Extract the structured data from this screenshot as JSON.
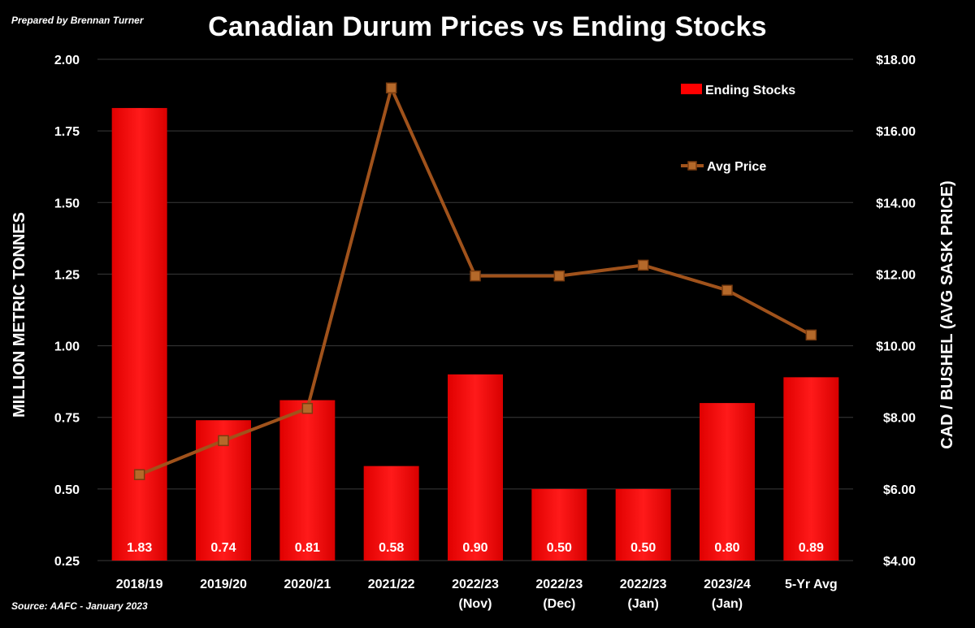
{
  "prepared_by": "Prepared by Brennan Turner",
  "source": "Source: AAFC -  January 2023",
  "chart_data": {
    "type": "bar",
    "title": "Canadian Durum Prices vs Ending Stocks",
    "categories": [
      [
        "2018/19"
      ],
      [
        "2019/20"
      ],
      [
        "2020/21"
      ],
      [
        "2021/22"
      ],
      [
        "2022/23",
        "(Nov)"
      ],
      [
        "2022/23",
        "(Dec)"
      ],
      [
        "2022/23",
        "(Jan)"
      ],
      [
        "2023/24",
        "(Jan)"
      ],
      [
        "5-Yr Avg"
      ]
    ],
    "series": [
      {
        "name": "Ending Stocks",
        "type": "bar",
        "axis": "left",
        "color": "#ff0000",
        "values": [
          1.83,
          0.74,
          0.81,
          0.58,
          0.9,
          0.5,
          0.5,
          0.8,
          0.89
        ],
        "data_labels": [
          "1.83",
          "0.74",
          "0.81",
          "0.58",
          "0.90",
          "0.50",
          "0.50",
          "0.80",
          "0.89"
        ]
      },
      {
        "name": "Avg Price",
        "type": "line",
        "axis": "right",
        "color": "#a0521b",
        "values": [
          6.4,
          7.35,
          8.25,
          17.2,
          11.95,
          11.95,
          12.25,
          11.55,
          10.3
        ]
      }
    ],
    "y_left": {
      "label": "MILLION METRIC TONNES",
      "lim": [
        0.25,
        2.0
      ],
      "ticks": [
        0.25,
        0.5,
        0.75,
        1.0,
        1.25,
        1.5,
        1.75,
        2.0
      ],
      "tick_labels": [
        "0.25",
        "0.50",
        "0.75",
        "1.00",
        "1.25",
        "1.50",
        "1.75",
        "2.00"
      ]
    },
    "y_right": {
      "label": "CAD / BUSHEL (AVG SASK PRICE)",
      "lim": [
        4,
        18
      ],
      "ticks": [
        4,
        6,
        8,
        10,
        12,
        14,
        16,
        18
      ],
      "tick_labels": [
        "$4.00",
        "$6.00",
        "$8.00",
        "$10.00",
        "$12.00",
        "$14.00",
        "$16.00",
        "$18.00"
      ]
    },
    "grid": true,
    "legend": "top-right"
  }
}
